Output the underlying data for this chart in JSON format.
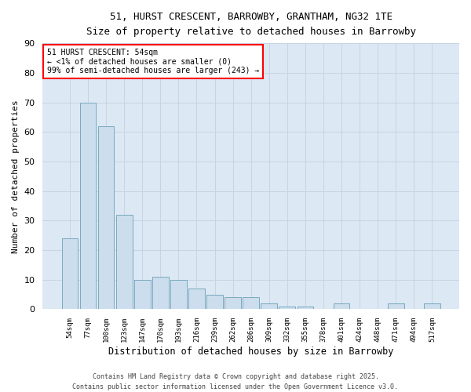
{
  "title_line1": "51, HURST CRESCENT, BARROWBY, GRANTHAM, NG32 1TE",
  "title_line2": "Size of property relative to detached houses in Barrowby",
  "xlabel": "Distribution of detached houses by size in Barrowby",
  "ylabel": "Number of detached properties",
  "categories": [
    "54sqm",
    "77sqm",
    "100sqm",
    "123sqm",
    "147sqm",
    "170sqm",
    "193sqm",
    "216sqm",
    "239sqm",
    "262sqm",
    "286sqm",
    "309sqm",
    "332sqm",
    "355sqm",
    "378sqm",
    "401sqm",
    "424sqm",
    "448sqm",
    "471sqm",
    "494sqm",
    "517sqm"
  ],
  "values": [
    24,
    70,
    62,
    32,
    10,
    11,
    10,
    7,
    5,
    4,
    4,
    2,
    1,
    1,
    0,
    2,
    0,
    0,
    2,
    0,
    2
  ],
  "bar_color": "#ccdded",
  "bar_edge_color": "#7aaabf",
  "ylim": [
    0,
    90
  ],
  "yticks": [
    0,
    10,
    20,
    30,
    40,
    50,
    60,
    70,
    80,
    90
  ],
  "annotation_box_text": "51 HURST CRESCENT: 54sqm\n← <1% of detached houses are smaller (0)\n99% of semi-detached houses are larger (243) →",
  "grid_color": "#c8d4e4",
  "fig_background": "#ffffff",
  "ax_background": "#dce8f4",
  "footer_line1": "Contains HM Land Registry data © Crown copyright and database right 2025.",
  "footer_line2": "Contains public sector information licensed under the Open Government Licence v3.0."
}
